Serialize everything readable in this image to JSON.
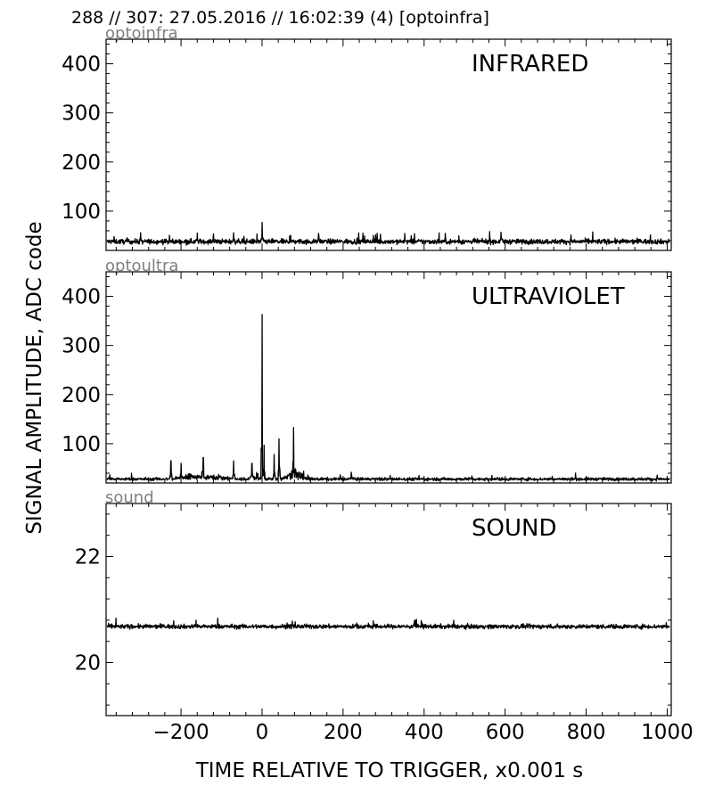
{
  "header": "288 // 307:   27.05.2016 // 16:02:39 (4)  [optoinfra]",
  "ylabel": "SIGNAL AMPLITUDE,  ADC code",
  "xlabel": "TIME RELATIVE TO TRIGGER,   x0.001 s",
  "chart_data": [
    {
      "type": "line",
      "channel": "optoinfra",
      "label": "INFRARED",
      "xlim": [
        -385,
        1010
      ],
      "ylim": [
        20,
        450
      ],
      "yticks": [
        100,
        200,
        300,
        400
      ],
      "xticks": [
        -200,
        0,
        200,
        400,
        600,
        800,
        1000
      ],
      "series": [
        {
          "baseline": 38,
          "noise": 5,
          "peaks": [
            [
              0,
              77
            ],
            [
              -70,
              56
            ],
            [
              -160,
              55
            ],
            [
              590,
              57
            ],
            [
              -300,
              56
            ],
            [
              140,
              50
            ]
          ]
        }
      ]
    },
    {
      "type": "line",
      "channel": "optoultra",
      "label": "ULTRAVIOLET",
      "xlim": [
        -385,
        1010
      ],
      "ylim": [
        20,
        450
      ],
      "yticks": [
        100,
        200,
        300,
        400
      ],
      "xticks": [
        -200,
        0,
        200,
        400,
        600,
        800,
        1000
      ],
      "series": [
        {
          "baseline": 28,
          "noise": 3,
          "peaks": [
            [
              0,
              363
            ],
            [
              -225,
              65
            ],
            [
              -200,
              60
            ],
            [
              -145,
              72
            ],
            [
              -70,
              65
            ],
            [
              -25,
              60
            ],
            [
              5,
              97
            ],
            [
              30,
              78
            ],
            [
              42,
              110
            ],
            [
              78,
              133
            ],
            [
              220,
              42
            ]
          ],
          "bumps": [
            [
              -180,
              40,
              12,
              40
            ],
            [
              -120,
              60,
              8,
              45
            ],
            [
              80,
              30,
              25,
              25
            ],
            [
              -20,
              20,
              8,
              20
            ]
          ]
        }
      ]
    },
    {
      "type": "line",
      "channel": "sound",
      "label": "SOUND",
      "xlim": [
        -385,
        1010
      ],
      "ylim": [
        19,
        23
      ],
      "yticks": [
        20,
        22
      ],
      "xticks": [
        -200,
        0,
        200,
        400,
        600,
        800,
        1000
      ],
      "xticklabels": [
        "−200",
        "0",
        "200",
        "400",
        "600",
        "800",
        "1000"
      ],
      "series": [
        {
          "baseline": 20.68,
          "noise": 0.04
        }
      ]
    }
  ]
}
